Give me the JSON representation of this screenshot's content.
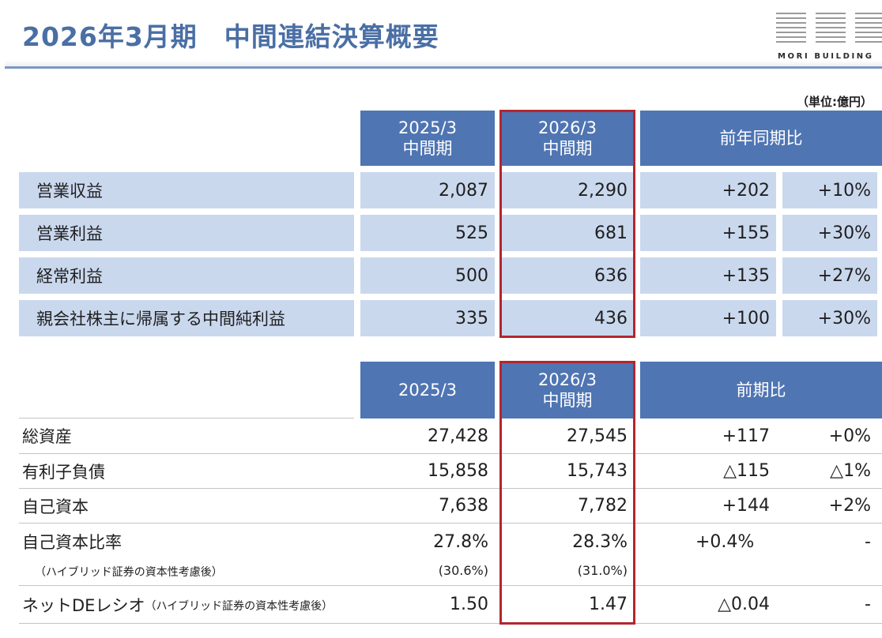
{
  "title": "2026年3月期　中間連結決算概要",
  "logo": {
    "text": "MORI BUILDING"
  },
  "unit": "（単位:億円）",
  "table1": {
    "headers": {
      "col1_line1": "2025/3",
      "col1_line2": "中間期",
      "col2_line1": "2026/3",
      "col2_line2": "中間期",
      "col3": "前年同期比"
    },
    "rows": [
      {
        "label": "営業収益",
        "prev": "2,087",
        "curr": "2,290",
        "diff": "+202",
        "pct": "+10%"
      },
      {
        "label": "営業利益",
        "prev": "525",
        "curr": "681",
        "diff": "+155",
        "pct": "+30%"
      },
      {
        "label": "経常利益",
        "prev": "500",
        "curr": "636",
        "diff": "+135",
        "pct": "+27%"
      },
      {
        "label": "親会社株主に帰属する中間純利益",
        "prev": "335",
        "curr": "436",
        "diff": "+100",
        "pct": "+30%"
      }
    ]
  },
  "table2": {
    "headers": {
      "col1": "2025/3",
      "col2_line1": "2026/3",
      "col2_line2": "中間期",
      "col3": "前期比"
    },
    "rows": [
      {
        "label": "総資産",
        "prev": "27,428",
        "curr": "27,545",
        "diff": "+117",
        "pct": "+0%"
      },
      {
        "label": "有利子負債",
        "prev": "15,858",
        "curr": "15,743",
        "diff": "△115",
        "pct": "△1%"
      },
      {
        "label": "自己資本",
        "prev": "7,638",
        "curr": "7,782",
        "diff": "+144",
        "pct": "+2%"
      },
      {
        "label": "自己資本比率",
        "prev": "27.8%",
        "curr": "28.3%",
        "diff": "+0.4%",
        "pct": "-",
        "sublabel": "（ハイブリッド証券の資本性考慮後）",
        "sub_prev": "(30.6%)",
        "sub_curr": "(31.0%)"
      },
      {
        "label": "ネットDEレシオ",
        "label_note": "（ハイブリッド証券の資本性考慮後）",
        "prev": "1.50",
        "curr": "1.47",
        "diff": "△0.04",
        "pct": "-"
      }
    ]
  }
}
